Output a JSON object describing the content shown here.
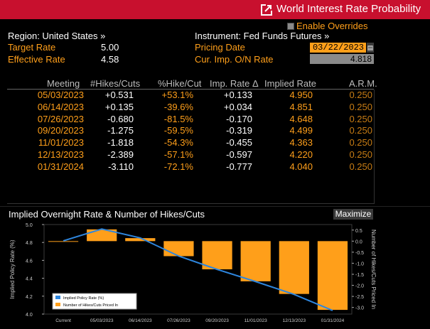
{
  "window": {
    "title": "World Interest Rate Probability",
    "enable_overrides": "Enable Overrides"
  },
  "left": {
    "region_label": "Region: United States »",
    "target_rate_label": "Target Rate",
    "target_rate_value": "5.00",
    "effective_rate_label": "Effective Rate",
    "effective_rate_value": "4.58"
  },
  "right": {
    "instrument_label": "Instrument: Fed Funds Futures »",
    "pricing_date_label": "Pricing Date",
    "pricing_date_value": "03/22/2023",
    "onr_label": "Cur. Imp. O/N Rate",
    "onr_value": "4.818"
  },
  "table": {
    "headers": [
      "Meeting",
      "#Hikes/Cuts",
      "%Hike/Cut",
      "Imp. Rate Δ",
      "Implied Rate",
      "A.R.M."
    ],
    "rows": [
      [
        "05/03/2023",
        "+0.531",
        "+53.1%",
        "+0.133",
        "4.950",
        "0.250"
      ],
      [
        "06/14/2023",
        "+0.135",
        "-39.6%",
        "+0.034",
        "4.851",
        "0.250"
      ],
      [
        "07/26/2023",
        "-0.680",
        "-81.5%",
        "-0.170",
        "4.648",
        "0.250"
      ],
      [
        "09/20/2023",
        "-1.275",
        "-59.5%",
        "-0.319",
        "4.499",
        "0.250"
      ],
      [
        "11/01/2023",
        "-1.818",
        "-54.3%",
        "-0.455",
        "4.363",
        "0.250"
      ],
      [
        "12/13/2023",
        "-2.389",
        "-57.1%",
        "-0.597",
        "4.220",
        "0.250"
      ],
      [
        "01/31/2024",
        "-3.110",
        "-72.1%",
        "-0.777",
        "4.040",
        "0.250"
      ]
    ]
  },
  "chart_section": {
    "title": "Implied Overnight Rate & Number of Hikes/Cuts",
    "maximize_label": "Maximize"
  },
  "chart_data": {
    "type": "bar",
    "categories": [
      "Current",
      "05/03/2023",
      "06/14/2023",
      "07/26/2023",
      "09/20/2023",
      "11/01/2023",
      "12/13/2023",
      "01/31/2024"
    ],
    "series": [
      {
        "name": "Implied Policy Rate (%)",
        "type": "line",
        "axis": "left",
        "color": "#2e86de",
        "values": [
          4.818,
          4.95,
          4.851,
          4.648,
          4.499,
          4.363,
          4.22,
          4.04
        ]
      },
      {
        "name": "Number of Hikes/Cuts Priced In",
        "type": "bar",
        "axis": "right",
        "color": "#ff9f1a",
        "values": [
          0,
          0.531,
          0.135,
          -0.68,
          -1.275,
          -1.818,
          -2.389,
          -3.11
        ]
      }
    ],
    "ylabel": "Implied Policy Rate (%)",
    "y2label": "Number of Hikes/Cuts Priced In",
    "ylim": [
      4.0,
      5.0
    ],
    "y2lim": [
      -3.3,
      0.75
    ],
    "yticks": [
      "5.0",
      "4.8",
      "4.6",
      "4.4",
      "4.2",
      "4.0"
    ],
    "y2ticks": [
      "0.5",
      "0.0",
      "-0.5",
      "-1.0",
      "-1.5",
      "-2.0",
      "-2.5",
      "-3.0"
    ],
    "legend_position": "bottom-left"
  }
}
